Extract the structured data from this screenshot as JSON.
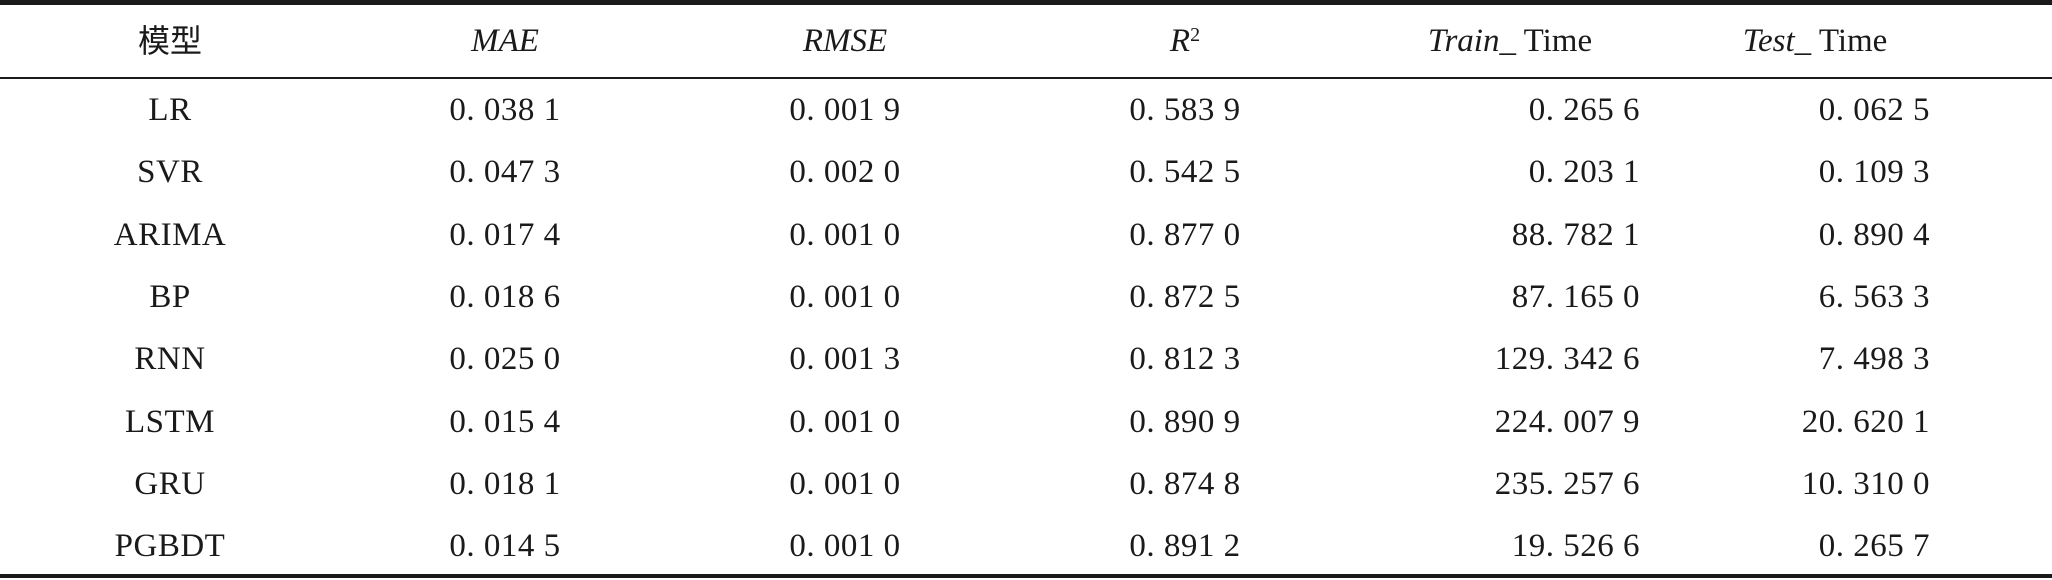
{
  "table": {
    "headers": {
      "model": "模型",
      "mae": "MAE",
      "rmse": "RMSE",
      "r2_base": "R",
      "r2_sup": "2",
      "train_italic": "Train_",
      "train_rest": " Time",
      "test_italic": "Test_",
      "test_rest": " Time"
    },
    "rows": [
      {
        "model": "LR",
        "mae": "0. 038 1",
        "rmse": "0. 001 9",
        "r2": "0. 583 9",
        "train": "0. 265 6",
        "test": "0. 062 5"
      },
      {
        "model": "SVR",
        "mae": "0. 047 3",
        "rmse": "0. 002 0",
        "r2": "0. 542 5",
        "train": "0. 203 1",
        "test": "0. 109 3"
      },
      {
        "model": "ARIMA",
        "mae": "0. 017 4",
        "rmse": "0. 001 0",
        "r2": "0. 877 0",
        "train": "88. 782 1",
        "test": "0. 890 4"
      },
      {
        "model": "BP",
        "mae": "0. 018 6",
        "rmse": "0. 001 0",
        "r2": "0. 872 5",
        "train": "87. 165 0",
        "test": "6. 563 3"
      },
      {
        "model": "RNN",
        "mae": "0. 025 0",
        "rmse": "0. 001 3",
        "r2": "0. 812 3",
        "train": "129. 342 6",
        "test": "7. 498 3"
      },
      {
        "model": "LSTM",
        "mae": "0. 015 4",
        "rmse": "0. 001 0",
        "r2": "0. 890 9",
        "train": "224. 007 9",
        "test": "20. 620 1"
      },
      {
        "model": "GRU",
        "mae": "0. 018 1",
        "rmse": "0. 001 0",
        "r2": "0. 874 8",
        "train": "235. 257 6",
        "test": "10. 310 0"
      },
      {
        "model": "PGBDT",
        "mae": "0. 014 5",
        "rmse": "0. 001 0",
        "r2": "0. 891 2",
        "train": "19. 526 6",
        "test": "0. 265 7"
      }
    ]
  }
}
